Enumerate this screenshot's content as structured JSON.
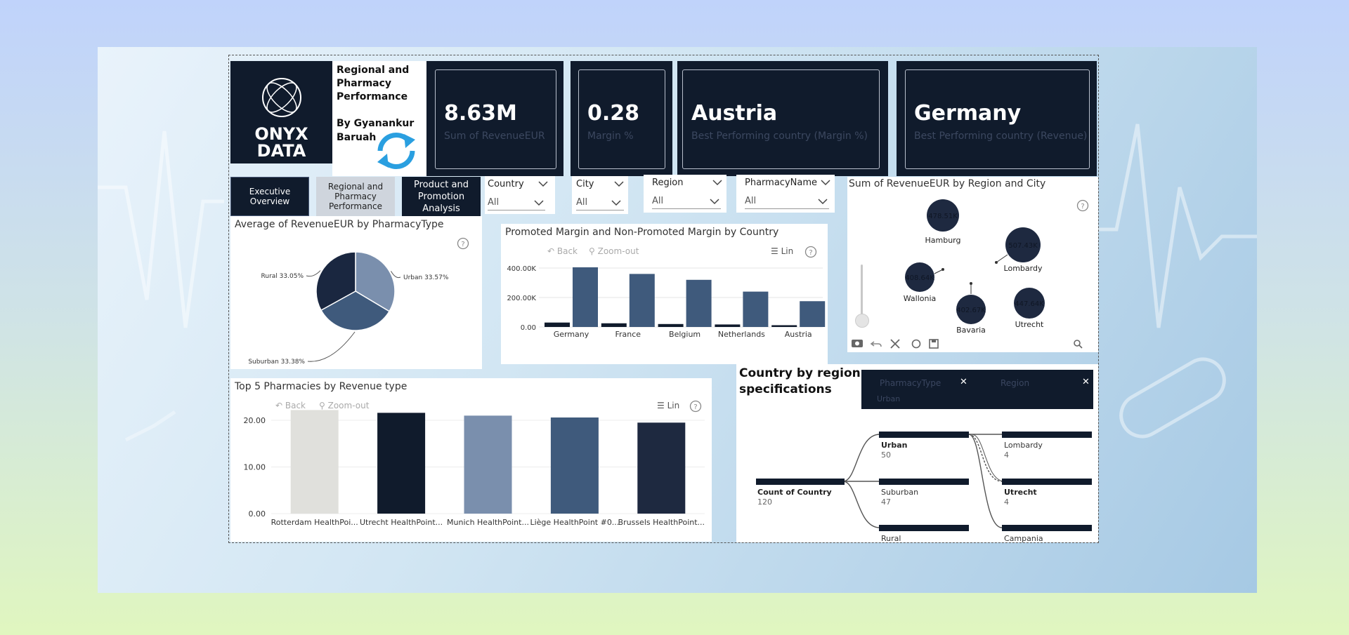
{
  "header": {
    "logo_line1": "ONYX",
    "logo_line2": "DATA",
    "title_lines": [
      "Regional and",
      "Pharmacy",
      "Performance"
    ],
    "author_lines": [
      "By Gyanankur",
      "Baruah"
    ]
  },
  "kpis": [
    {
      "value": "8.63M",
      "label": "Sum of RevenueEUR"
    },
    {
      "value": "0.28",
      "label": "Margin %"
    },
    {
      "value": "Austria",
      "label": "Best Performing country (Margin %)"
    },
    {
      "value": "Germany",
      "label": "Best Performing country (Revenue)"
    }
  ],
  "nav": {
    "executive": "Executive Overview",
    "regional": [
      "Regional and",
      "Pharmacy",
      "Performance"
    ],
    "product": [
      "Product and",
      "Promotion Analysis"
    ]
  },
  "slicers": [
    {
      "label": "Country",
      "value": "All"
    },
    {
      "label": "City",
      "value": "All"
    },
    {
      "label": "Region",
      "value": "All"
    },
    {
      "label": "PharmacyName",
      "value": "All"
    }
  ],
  "toolbar": {
    "back": "Back",
    "zoom_out": "Zoom-out",
    "lin": "Lin"
  },
  "colors": {
    "navy": "#101b2c",
    "mid_blue": "#3f5a7c",
    "light_blue": "#7a8fad",
    "light_gray": "#e0e0dc"
  },
  "pie": {
    "title": "Average of RevenueEUR by PharmacyType",
    "chart_data": {
      "type": "pie",
      "categories": [
        "Urban",
        "Suburban",
        "Rural"
      ],
      "values": [
        33.57,
        33.38,
        33.05
      ],
      "labels": [
        "Urban 33.57%",
        "Suburban 33.38%",
        "Rural 33.05%"
      ],
      "colors": [
        "#7a8fad",
        "#3f5a7c",
        "#1a2740"
      ]
    }
  },
  "margin_chart": {
    "title": "Promoted Margin and Non-Promoted Margin by Country",
    "chart_data": {
      "type": "bar",
      "categories": [
        "Germany",
        "France",
        "Belgium",
        "Netherlands",
        "Austria"
      ],
      "series": [
        {
          "values": [
            30000,
            25000,
            20000,
            17000,
            12000
          ],
          "color": "#101b2c"
        },
        {
          "values": [
            405000,
            360000,
            320000,
            240000,
            175000
          ],
          "color": "#3f5a7c"
        }
      ],
      "y_ticks": [
        "0.00",
        "200.00K",
        "400.00K"
      ],
      "ylim": [
        0,
        420000
      ]
    }
  },
  "top5": {
    "title": "Top 5 Pharmacies by Revenue type",
    "chart_data": {
      "type": "bar",
      "categories": [
        "Rotterdam HealthPoi...",
        "Utrecht HealthPoint...",
        "Munich HealthPoint...",
        "Liège HealthPoint #0...",
        "Brussels HealthPoint..."
      ],
      "values": [
        22.2,
        21.6,
        21.0,
        20.6,
        19.5
      ],
      "colors": [
        "#e0e0dc",
        "#101b2c",
        "#7a8fad",
        "#3f5a7c",
        "#1e2940"
      ],
      "y_ticks": [
        "0.00",
        "10.00",
        "20.00"
      ],
      "ylim": [
        0,
        22.5
      ]
    }
  },
  "bubble": {
    "title": "Sum of RevenueEUR by Region and City",
    "chart_data": {
      "type": "scatter",
      "points": [
        {
          "name": "Hamburg",
          "value": "478.51K"
        },
        {
          "name": "Lombardy",
          "value": "507.43K"
        },
        {
          "name": "Wallonia",
          "value": "408.64K"
        },
        {
          "name": "Bavaria",
          "value": "402.67K"
        },
        {
          "name": "Utrecht",
          "value": "447.64K"
        }
      ]
    }
  },
  "tree": {
    "title_lines": [
      "Country by region",
      "specifications"
    ],
    "filter1": {
      "label": "PharmacyType",
      "value": "Urban"
    },
    "filter2": {
      "label": "Region"
    },
    "root": {
      "label": "Count of Country",
      "value": "120"
    },
    "level1": [
      {
        "label": "Urban",
        "value": "50"
      },
      {
        "label": "Suburban",
        "value": "47"
      },
      {
        "label": "Rural",
        "value": ""
      }
    ],
    "level2": [
      {
        "label": "Lombardy",
        "value": "4"
      },
      {
        "label": "Utrecht",
        "value": "4"
      },
      {
        "label": "Campania",
        "value": ""
      }
    ]
  }
}
